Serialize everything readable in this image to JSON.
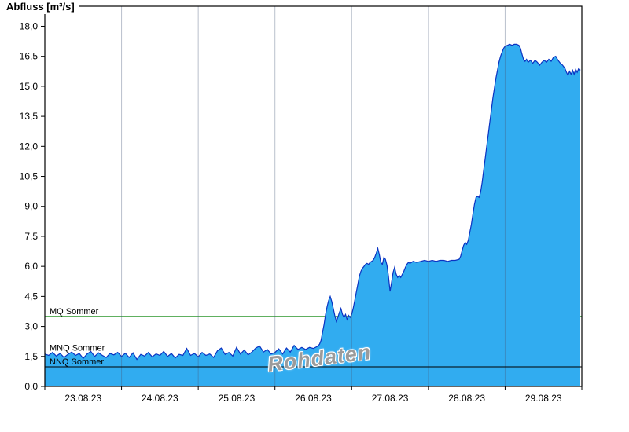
{
  "colors": {
    "area_fill": "#31acf0",
    "series_line": "#0a33c2",
    "grid_line": "rgba(70,90,120,0.38)",
    "mq_line": "#008000",
    "low_flow_line": "#000000",
    "border": "#000000",
    "watermark_text": "#9b9b9b"
  },
  "chart_data": {
    "type": "area",
    "title": "",
    "ylabel": "Abfluss [m³/s]",
    "xlabel": "",
    "watermark": "Rohdaten",
    "grid": "vertical-daily",
    "legend_position": "none",
    "ylim": [
      0,
      19
    ],
    "x_domain_days": 7,
    "x_start_label": "23.08.23",
    "x_tick_labels": [
      "23.08.23",
      "24.08.23",
      "25.08.23",
      "26.08.23",
      "27.08.23",
      "28.08.23",
      "29.08.23"
    ],
    "y_ticks": [
      {
        "value": 0,
        "label": "0,0"
      },
      {
        "value": 1.5,
        "label": "1,5"
      },
      {
        "value": 3,
        "label": "3,0"
      },
      {
        "value": 4.5,
        "label": "4,5"
      },
      {
        "value": 6,
        "label": "6,0"
      },
      {
        "value": 7.5,
        "label": "7,5"
      },
      {
        "value": 9,
        "label": "9,0"
      },
      {
        "value": 10.5,
        "label": "10,5"
      },
      {
        "value": 12,
        "label": "12,0"
      },
      {
        "value": 13.5,
        "label": "13,5"
      },
      {
        "value": 15,
        "label": "15,0"
      },
      {
        "value": 16.5,
        "label": "16,5"
      },
      {
        "value": 18,
        "label": "18,0"
      }
    ],
    "reference_lines": [
      {
        "label": "MQ Sommer",
        "value": 3.5,
        "color": "#008000",
        "layer": "under"
      },
      {
        "label": "MNQ Sommer",
        "value": 1.67,
        "color": "#000000",
        "layer": "under"
      },
      {
        "label": "NNQ Sommer",
        "value": 0.98,
        "color": "#000000",
        "layer": "over"
      }
    ],
    "series": [
      {
        "name": "Abfluss Rohdaten",
        "unit": "m³/s",
        "points": [
          [
            0,
            1.62
          ],
          [
            0.05,
            1.55
          ],
          [
            0.1,
            1.7
          ],
          [
            0.15,
            1.52
          ],
          [
            0.2,
            1.65
          ],
          [
            0.25,
            1.45
          ],
          [
            0.3,
            1.6
          ],
          [
            0.35,
            1.72
          ],
          [
            0.4,
            1.55
          ],
          [
            0.45,
            1.65
          ],
          [
            0.5,
            1.4
          ],
          [
            0.55,
            1.62
          ],
          [
            0.6,
            1.75
          ],
          [
            0.65,
            1.5
          ],
          [
            0.7,
            1.68
          ],
          [
            0.75,
            1.55
          ],
          [
            0.8,
            1.45
          ],
          [
            0.85,
            1.65
          ],
          [
            0.9,
            1.58
          ],
          [
            0.95,
            1.7
          ],
          [
            1,
            1.5
          ],
          [
            1.05,
            1.66
          ],
          [
            1.1,
            1.45
          ],
          [
            1.15,
            1.68
          ],
          [
            1.2,
            1.35
          ],
          [
            1.25,
            1.6
          ],
          [
            1.3,
            1.52
          ],
          [
            1.35,
            1.7
          ],
          [
            1.4,
            1.48
          ],
          [
            1.45,
            1.63
          ],
          [
            1.5,
            1.55
          ],
          [
            1.55,
            1.75
          ],
          [
            1.6,
            1.5
          ],
          [
            1.65,
            1.65
          ],
          [
            1.7,
            1.42
          ],
          [
            1.75,
            1.6
          ],
          [
            1.8,
            1.55
          ],
          [
            1.85,
            1.9
          ],
          [
            1.9,
            1.55
          ],
          [
            1.95,
            1.65
          ],
          [
            2,
            1.48
          ],
          [
            2.05,
            1.7
          ],
          [
            2.1,
            1.55
          ],
          [
            2.15,
            1.62
          ],
          [
            2.2,
            1.45
          ],
          [
            2.25,
            1.78
          ],
          [
            2.3,
            1.92
          ],
          [
            2.35,
            1.6
          ],
          [
            2.4,
            1.7
          ],
          [
            2.45,
            1.52
          ],
          [
            2.5,
            1.95
          ],
          [
            2.55,
            1.62
          ],
          [
            2.6,
            1.82
          ],
          [
            2.65,
            1.58
          ],
          [
            2.7,
            1.72
          ],
          [
            2.75,
            1.92
          ],
          [
            2.8,
            2.02
          ],
          [
            2.85,
            1.72
          ],
          [
            2.9,
            1.85
          ],
          [
            2.95,
            1.62
          ],
          [
            3,
            1.7
          ],
          [
            3.05,
            1.88
          ],
          [
            3.1,
            1.62
          ],
          [
            3.15,
            1.92
          ],
          [
            3.2,
            1.72
          ],
          [
            3.25,
            2.05
          ],
          [
            3.3,
            1.85
          ],
          [
            3.35,
            1.95
          ],
          [
            3.4,
            1.85
          ],
          [
            3.45,
            1.95
          ],
          [
            3.5,
            1.9
          ],
          [
            3.55,
            2.0
          ],
          [
            3.58,
            2.1
          ],
          [
            3.6,
            2.3
          ],
          [
            3.62,
            2.7
          ],
          [
            3.64,
            3.1
          ],
          [
            3.66,
            3.6
          ],
          [
            3.68,
            4.0
          ],
          [
            3.7,
            4.3
          ],
          [
            3.72,
            4.5
          ],
          [
            3.74,
            4.25
          ],
          [
            3.76,
            3.9
          ],
          [
            3.78,
            3.55
          ],
          [
            3.8,
            3.25
          ],
          [
            3.82,
            3.45
          ],
          [
            3.84,
            3.7
          ],
          [
            3.86,
            3.9
          ],
          [
            3.88,
            3.6
          ],
          [
            3.9,
            3.45
          ],
          [
            3.92,
            3.6
          ],
          [
            3.94,
            3.35
          ],
          [
            3.96,
            3.55
          ],
          [
            3.98,
            3.45
          ],
          [
            4,
            3.6
          ],
          [
            4.02,
            3.9
          ],
          [
            4.04,
            4.3
          ],
          [
            4.06,
            4.7
          ],
          [
            4.08,
            5.1
          ],
          [
            4.1,
            5.5
          ],
          [
            4.12,
            5.75
          ],
          [
            4.14,
            5.9
          ],
          [
            4.16,
            6.0
          ],
          [
            4.18,
            6.1
          ],
          [
            4.2,
            6.15
          ],
          [
            4.22,
            6.1
          ],
          [
            4.24,
            6.2
          ],
          [
            4.26,
            6.25
          ],
          [
            4.28,
            6.3
          ],
          [
            4.3,
            6.45
          ],
          [
            4.32,
            6.65
          ],
          [
            4.34,
            6.9
          ],
          [
            4.36,
            6.6
          ],
          [
            4.38,
            6.2
          ],
          [
            4.4,
            6.1
          ],
          [
            4.42,
            6.45
          ],
          [
            4.44,
            6.35
          ],
          [
            4.46,
            6.05
          ],
          [
            4.48,
            5.5
          ],
          [
            4.5,
            4.75
          ],
          [
            4.52,
            5.2
          ],
          [
            4.54,
            5.7
          ],
          [
            4.56,
            5.95
          ],
          [
            4.58,
            5.6
          ],
          [
            4.6,
            5.45
          ],
          [
            4.62,
            5.55
          ],
          [
            4.64,
            5.45
          ],
          [
            4.66,
            5.6
          ],
          [
            4.68,
            5.75
          ],
          [
            4.7,
            5.95
          ],
          [
            4.72,
            6.1
          ],
          [
            4.74,
            6.2
          ],
          [
            4.76,
            6.15
          ],
          [
            4.78,
            6.2
          ],
          [
            4.8,
            6.25
          ],
          [
            4.85,
            6.2
          ],
          [
            4.9,
            6.25
          ],
          [
            4.95,
            6.3
          ],
          [
            5,
            6.25
          ],
          [
            5.05,
            6.3
          ],
          [
            5.1,
            6.25
          ],
          [
            5.15,
            6.3
          ],
          [
            5.2,
            6.3
          ],
          [
            5.25,
            6.25
          ],
          [
            5.3,
            6.3
          ],
          [
            5.35,
            6.3
          ],
          [
            5.4,
            6.35
          ],
          [
            5.42,
            6.5
          ],
          [
            5.44,
            6.8
          ],
          [
            5.46,
            7.05
          ],
          [
            5.48,
            7.2
          ],
          [
            5.5,
            7.1
          ],
          [
            5.52,
            7.3
          ],
          [
            5.54,
            7.7
          ],
          [
            5.56,
            8.1
          ],
          [
            5.58,
            8.6
          ],
          [
            5.6,
            9.1
          ],
          [
            5.62,
            9.45
          ],
          [
            5.64,
            9.5
          ],
          [
            5.66,
            9.45
          ],
          [
            5.68,
            9.7
          ],
          [
            5.7,
            10.2
          ],
          [
            5.72,
            10.8
          ],
          [
            5.74,
            11.4
          ],
          [
            5.76,
            12.0
          ],
          [
            5.78,
            12.6
          ],
          [
            5.8,
            13.2
          ],
          [
            5.82,
            13.8
          ],
          [
            5.84,
            14.4
          ],
          [
            5.86,
            14.9
          ],
          [
            5.88,
            15.4
          ],
          [
            5.9,
            15.8
          ],
          [
            5.92,
            16.2
          ],
          [
            5.94,
            16.5
          ],
          [
            5.96,
            16.7
          ],
          [
            5.98,
            16.9
          ],
          [
            6,
            17.0
          ],
          [
            6.03,
            17.05
          ],
          [
            6.06,
            17.1
          ],
          [
            6.09,
            17.05
          ],
          [
            6.12,
            17.1
          ],
          [
            6.15,
            17.1
          ],
          [
            6.18,
            17.05
          ],
          [
            6.2,
            16.9
          ],
          [
            6.22,
            16.6
          ],
          [
            6.24,
            16.35
          ],
          [
            6.26,
            16.25
          ],
          [
            6.28,
            16.35
          ],
          [
            6.3,
            16.2
          ],
          [
            6.33,
            16.3
          ],
          [
            6.36,
            16.15
          ],
          [
            6.39,
            16.3
          ],
          [
            6.42,
            16.2
          ],
          [
            6.45,
            16.05
          ],
          [
            6.48,
            16.2
          ],
          [
            6.51,
            16.3
          ],
          [
            6.54,
            16.2
          ],
          [
            6.57,
            16.35
          ],
          [
            6.6,
            16.25
          ],
          [
            6.63,
            16.45
          ],
          [
            6.66,
            16.5
          ],
          [
            6.69,
            16.3
          ],
          [
            6.72,
            16.15
          ],
          [
            6.75,
            16.05
          ],
          [
            6.78,
            15.9
          ],
          [
            6.8,
            15.7
          ],
          [
            6.82,
            15.55
          ],
          [
            6.84,
            15.75
          ],
          [
            6.86,
            15.6
          ],
          [
            6.88,
            15.8
          ],
          [
            6.9,
            15.6
          ],
          [
            6.92,
            15.85
          ],
          [
            6.94,
            15.7
          ],
          [
            6.96,
            15.9
          ],
          [
            6.98,
            15.8
          ]
        ]
      }
    ]
  }
}
